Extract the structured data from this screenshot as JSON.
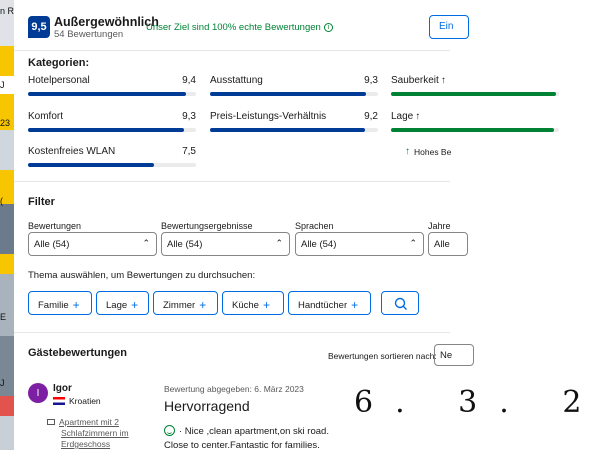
{
  "background_page": {
    "fragments": [
      "n R",
      "J",
      "23",
      "(",
      "E",
      "J"
    ]
  },
  "header": {
    "score": "9,5",
    "score_word": "Außergewöhnlich",
    "review_count": "54 Bewertungen",
    "goal_text": "Unser Ziel sind 100% echte Bewertungen",
    "write_button": "Ein"
  },
  "categories": {
    "title": "Kategorien:",
    "items": [
      {
        "label": "Hotelpersonal",
        "value": "9,4",
        "score": 9.4,
        "color": "#003b95"
      },
      {
        "label": "Ausstattung",
        "value": "9,3",
        "score": 9.3,
        "color": "#003b95"
      },
      {
        "label": "Sauberkeit",
        "value": "",
        "score": 9.8,
        "color": "#008234",
        "arrow": "↑"
      },
      {
        "label": "Komfort",
        "value": "9,3",
        "score": 9.3,
        "color": "#003b95"
      },
      {
        "label": "Preis-Leistungs-Verhältnis",
        "value": "9,2",
        "score": 9.2,
        "color": "#003b95"
      },
      {
        "label": "Lage",
        "value": "",
        "score": 9.7,
        "color": "#008234",
        "arrow": "↑"
      },
      {
        "label": "Kostenfreies WLAN",
        "value": "7,5",
        "score": 7.5,
        "color": "#003b95"
      }
    ],
    "high_score_note": "Hohes Be",
    "high_score_arrow": "↑"
  },
  "filter": {
    "title": "Filter",
    "selects": [
      {
        "label": "Bewertungen",
        "value": "Alle (54)"
      },
      {
        "label": "Bewertungsergebnisse",
        "value": "Alle (54)"
      },
      {
        "label": "Sprachen",
        "value": "Alle (54)"
      },
      {
        "label": "Jahre",
        "value": "Alle"
      }
    ],
    "topic_prompt": "Thema auswählen, um Bewertungen zu durchsuchen:",
    "topics": [
      "Familie",
      "Lage",
      "Zimmer",
      "Küche",
      "Handtücher"
    ]
  },
  "guest_reviews": {
    "title": "Gästebewertungen",
    "sort_label": "Bewertungen sortieren nach:",
    "sort_value": "Ne",
    "review": {
      "avatar_letter": "I",
      "name": "Igor",
      "country": "Kroatien",
      "room": [
        "Apartment mit 2",
        "Schlafzimmern im",
        "Erdgeschoss"
      ],
      "date_line": "Bewertung abgegeben: 6. März 2023",
      "title": "Hervorragend",
      "positive_line1": "· Nice ,clean apartment,on ski road.",
      "positive_line2": "Close to center.Fantastic for families."
    },
    "handwritten_note": "6. 3. 2"
  }
}
